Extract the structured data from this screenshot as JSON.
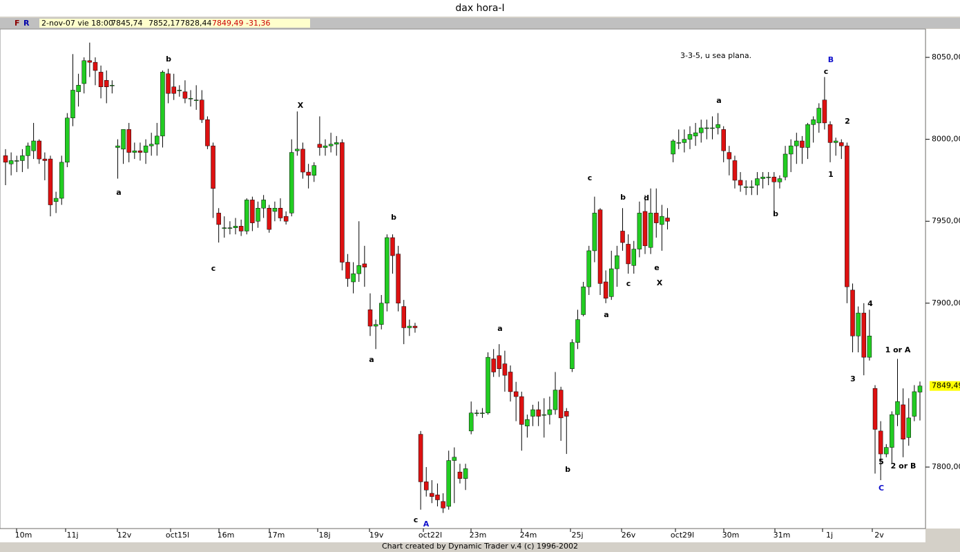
{
  "chart_data": {
    "type": "candlestick",
    "title": "dax hora-I",
    "info": {
      "flags": [
        "F",
        "R"
      ],
      "date": "2-nov-07 vie 18:00",
      "open": "7845,74",
      "high": "7852,17",
      "low": "7828,44",
      "close": "7849,49",
      "change": "-31,36"
    },
    "footer": "Chart created by Dynamic Trader v.4  (c) 1996-2002",
    "ylim": [
      7762.5,
      8067.3
    ],
    "yticks": [
      {
        "value": 8050,
        "label": "8050,00"
      },
      {
        "value": 8000,
        "label": "8000,00"
      },
      {
        "value": 7950,
        "label": "7950,00"
      },
      {
        "value": 7900,
        "label": "7900,00"
      },
      {
        "value": 7800,
        "label": "7800,00"
      }
    ],
    "last_price": {
      "value": 7849.49,
      "label": "7849,49"
    },
    "up_color": "#22cc22",
    "down_color": "#dd1111",
    "x_labels": [
      "10m",
      "11j",
      "12v",
      "oct15l",
      "16m",
      "17m",
      "18j",
      "19v",
      "oct22l",
      "23m",
      "24m",
      "25j",
      "26v",
      "oct29l",
      "30m",
      "31m",
      "1j",
      "2v"
    ],
    "annotations": [
      "3-3-5, u sea plana.",
      "a",
      "b",
      "c",
      "X",
      "b",
      "a",
      "c",
      "A",
      "a",
      "b",
      "c",
      "a",
      "b",
      "c",
      "d",
      "e",
      "X",
      "a",
      "b",
      "B",
      "c",
      "2",
      "1",
      "4",
      "3",
      "1 or A",
      "2 or B",
      "5",
      "C"
    ],
    "candles": [
      [
        7990,
        7994,
        7972,
        7986
      ],
      [
        7985,
        7992,
        7978,
        7987
      ],
      [
        7987,
        7990,
        7980,
        7987
      ],
      [
        7987,
        7994,
        7980,
        7990
      ],
      [
        7990,
        7998,
        7982,
        7996
      ],
      [
        7993,
        8010,
        7988,
        7999
      ],
      [
        7999,
        8000,
        7985,
        7988
      ],
      [
        7988,
        7992,
        7975,
        7987
      ],
      [
        7988,
        7990,
        7953,
        7960
      ],
      [
        7962,
        7968,
        7955,
        7964
      ],
      [
        7964,
        7990,
        7960,
        7986
      ],
      [
        7986,
        8016,
        7983,
        8013
      ],
      [
        8013,
        8052,
        8008,
        8030
      ],
      [
        8029,
        8040,
        8020,
        8033
      ],
      [
        8034,
        8050,
        8028,
        8048
      ],
      [
        8048,
        8059,
        8038,
        8047
      ],
      [
        8047,
        8050,
        8033,
        8042
      ],
      [
        8041,
        8045,
        8025,
        8032
      ],
      [
        8036,
        8042,
        8022,
        8032
      ],
      [
        8033,
        8036,
        8028,
        8033
      ],
      [
        7995,
        8000,
        7976,
        7996
      ],
      [
        7994,
        8006,
        7985,
        8006
      ],
      [
        8006,
        8010,
        7986,
        7992
      ],
      [
        7992,
        7998,
        7988,
        7993
      ],
      [
        7993,
        7998,
        7987,
        7992
      ],
      [
        7992,
        8000,
        7985,
        7996
      ],
      [
        7996,
        8004,
        7990,
        7997
      ],
      [
        7997,
        8010,
        7990,
        8002
      ],
      [
        8002,
        8042,
        7995,
        8041
      ],
      [
        8040,
        8043,
        8022,
        8028
      ],
      [
        8032,
        8040,
        8024,
        8028
      ],
      [
        8030,
        8033,
        8026,
        8030
      ],
      [
        8029,
        8036,
        8022,
        8025
      ],
      [
        8025,
        8030,
        8020,
        8025
      ],
      [
        8024,
        8033,
        8018,
        8024
      ],
      [
        8024,
        8030,
        8010,
        8012
      ],
      [
        8012,
        8014,
        7994,
        7996
      ],
      [
        7996,
        7998,
        7952,
        7970
      ],
      [
        7955,
        7958,
        7937,
        7948
      ],
      [
        7946,
        7953,
        7940,
        7946
      ],
      [
        7946,
        7950,
        7942,
        7946
      ],
      [
        7946,
        7952,
        7942,
        7947
      ],
      [
        7947,
        7951,
        7941,
        7944
      ],
      [
        7944,
        7964,
        7942,
        7963
      ],
      [
        7963,
        7965,
        7944,
        7949
      ],
      [
        7950,
        7962,
        7946,
        7958
      ],
      [
        7958,
        7966,
        7952,
        7963
      ],
      [
        7958,
        7960,
        7943,
        7945
      ],
      [
        7956,
        7962,
        7950,
        7958
      ],
      [
        7958,
        7964,
        7950,
        7952
      ],
      [
        7953,
        7956,
        7948,
        7950
      ],
      [
        7955,
        8000,
        7953,
        7992
      ],
      [
        7993,
        8017,
        7990,
        7994
      ],
      [
        7994,
        7998,
        7976,
        7980
      ],
      [
        7980,
        7985,
        7970,
        7978
      ],
      [
        7978,
        7986,
        7974,
        7984
      ],
      [
        7997,
        8014,
        7990,
        7995
      ],
      [
        7995,
        8000,
        7990,
        7996
      ],
      [
        7996,
        8004,
        7992,
        7997
      ],
      [
        7997,
        8002,
        7990,
        7998
      ],
      [
        7998,
        8000,
        7920,
        7925
      ],
      [
        7925,
        7930,
        7910,
        7915
      ],
      [
        7913,
        7925,
        7906,
        7918
      ],
      [
        7918,
        7950,
        7913,
        7923
      ],
      [
        7924,
        7935,
        7910,
        7922
      ],
      [
        7896,
        7906,
        7880,
        7886
      ],
      [
        7886,
        7890,
        7872,
        7887
      ],
      [
        7887,
        7905,
        7884,
        7900
      ],
      [
        7900,
        7942,
        7895,
        7940
      ],
      [
        7940,
        7942,
        7918,
        7929
      ],
      [
        7930,
        7935,
        7895,
        7900
      ],
      [
        7898,
        7902,
        7875,
        7885
      ],
      [
        7885,
        7890,
        7880,
        7886
      ],
      [
        7886,
        7888,
        7882,
        7885
      ],
      [
        7820,
        7822,
        7774,
        7791
      ],
      [
        7791,
        7800,
        7782,
        7786
      ],
      [
        7784,
        7792,
        7778,
        7782
      ],
      [
        7783,
        7790,
        7776,
        7780
      ],
      [
        7779,
        7784,
        7772,
        7775
      ],
      [
        7776,
        7810,
        7774,
        7804
      ],
      [
        7804,
        7812,
        7778,
        7806
      ],
      [
        7797,
        7802,
        7790,
        7793
      ],
      [
        7793,
        7802,
        7786,
        7799
      ],
      [
        7822,
        7840,
        7820,
        7833
      ],
      [
        7833,
        7835,
        7831,
        7833
      ],
      [
        7833,
        7836,
        7830,
        7833
      ],
      [
        7833,
        7870,
        7832,
        7867
      ],
      [
        7866,
        7872,
        7855,
        7858
      ],
      [
        7868,
        7875,
        7855,
        7860
      ],
      [
        7863,
        7871,
        7846,
        7856
      ],
      [
        7858,
        7862,
        7840,
        7846
      ],
      [
        7846,
        7852,
        7828,
        7843
      ],
      [
        7843,
        7846,
        7810,
        7826
      ],
      [
        7825,
        7832,
        7818,
        7829
      ],
      [
        7831,
        7838,
        7825,
        7835
      ],
      [
        7835,
        7840,
        7825,
        7831
      ],
      [
        7832,
        7842,
        7818,
        7832
      ],
      [
        7832,
        7843,
        7826,
        7835
      ],
      [
        7835,
        7858,
        7832,
        7847
      ],
      [
        7847,
        7849,
        7816,
        7830
      ],
      [
        7834,
        7836,
        7808,
        7831
      ],
      [
        7860,
        7878,
        7858,
        7876
      ],
      [
        7876,
        7896,
        7872,
        7890
      ],
      [
        7893,
        7913,
        7892,
        7910
      ],
      [
        7910,
        7935,
        7905,
        7932
      ],
      [
        7932,
        7965,
        7925,
        7955
      ],
      [
        7957,
        7958,
        7905,
        7912
      ],
      [
        7913,
        7920,
        7900,
        7903
      ],
      [
        7904,
        7932,
        7902,
        7921
      ],
      [
        7921,
        7935,
        7910,
        7929
      ],
      [
        7944,
        7958,
        7932,
        7937
      ],
      [
        7936,
        7942,
        7918,
        7924
      ],
      [
        7923,
        7938,
        7918,
        7933
      ],
      [
        7933,
        7962,
        7928,
        7955
      ],
      [
        7956,
        7966,
        7930,
        7935
      ],
      [
        7934,
        7970,
        7930,
        7955
      ],
      [
        7955,
        7970,
        7940,
        7949
      ],
      [
        7948,
        7960,
        7932,
        7953
      ],
      [
        7952,
        7958,
        7945,
        7950
      ],
      [
        7991,
        8000,
        7986,
        7999
      ],
      [
        7998,
        8006,
        7994,
        7998
      ],
      [
        7998,
        8006,
        7992,
        8000
      ],
      [
        8000,
        8008,
        7994,
        8003
      ],
      [
        8002,
        8010,
        7996,
        8004
      ],
      [
        8004,
        8012,
        7998,
        8007
      ],
      [
        8007,
        8012,
        8000,
        8007
      ],
      [
        8007,
        8014,
        8000,
        8007
      ],
      [
        8007,
        8016,
        8003,
        8009
      ],
      [
        8006,
        8008,
        7986,
        7993
      ],
      [
        7992,
        7996,
        7978,
        7988
      ],
      [
        7987,
        7990,
        7970,
        7975
      ],
      [
        7975,
        7980,
        7968,
        7972
      ],
      [
        7971,
        7975,
        7966,
        7971
      ],
      [
        7971,
        7975,
        7966,
        7971
      ],
      [
        7972,
        7980,
        7966,
        7976
      ],
      [
        7976,
        7980,
        7970,
        7977
      ],
      [
        7977,
        7980,
        7972,
        7977
      ],
      [
        7977,
        7980,
        7954,
        7974
      ],
      [
        7974,
        7978,
        7970,
        7976
      ],
      [
        7977,
        7996,
        7975,
        7991
      ],
      [
        7991,
        8000,
        7980,
        7996
      ],
      [
        7996,
        8004,
        7985,
        7999
      ],
      [
        7999,
        8002,
        7985,
        7995
      ],
      [
        7995,
        8010,
        7988,
        8009
      ],
      [
        8009,
        8014,
        7998,
        8012
      ],
      [
        8010,
        8022,
        8004,
        8019
      ],
      [
        8024,
        8038,
        8006,
        8010
      ],
      [
        8009,
        8011,
        7986,
        7998
      ],
      [
        7998,
        8001,
        7990,
        7999
      ],
      [
        7998,
        8000,
        7988,
        7996
      ],
      [
        7996,
        7998,
        7900,
        7910
      ],
      [
        7908,
        7912,
        7870,
        7880
      ],
      [
        7880,
        7898,
        7870,
        7894
      ],
      [
        7894,
        7900,
        7856,
        7867
      ],
      [
        7867,
        7896,
        7865,
        7880
      ],
      [
        7848,
        7850,
        7796,
        7823
      ],
      [
        7822,
        7828,
        7792,
        7808
      ],
      [
        7808,
        7814,
        7806,
        7812
      ],
      [
        7812,
        7834,
        7802,
        7832
      ],
      [
        7832,
        7866,
        7825,
        7840
      ],
      [
        7838,
        7848,
        7806,
        7817
      ],
      [
        7818,
        7842,
        7813,
        7830
      ],
      [
        7831,
        7850,
        7828,
        7846
      ],
      [
        7845.74,
        7852.17,
        7828.44,
        7849.49
      ]
    ]
  }
}
